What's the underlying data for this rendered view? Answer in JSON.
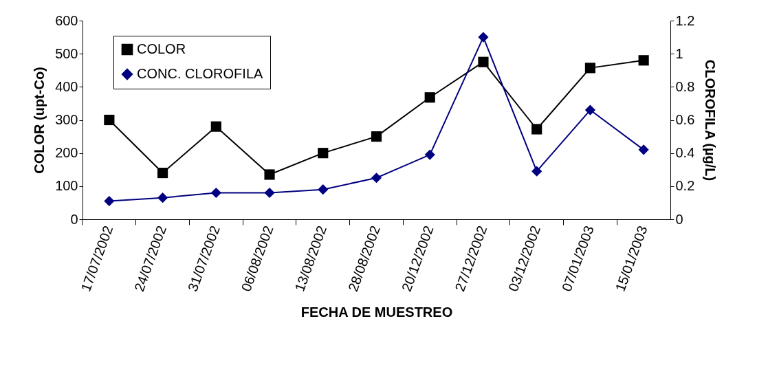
{
  "chart_data": {
    "type": "line",
    "categories": [
      "17/07/2002",
      "24/07/2002",
      "31/07/2002",
      "06/08/2002",
      "13/08/2002",
      "28/08/2002",
      "20/12/2002",
      "27/12/2002",
      "03/12/2002",
      "07/01/2003",
      "15/01/2003"
    ],
    "series": [
      {
        "name": "COLOR",
        "color": "#000000",
        "marker": "square",
        "values": [
          300,
          140,
          280,
          135,
          200,
          250,
          368,
          475,
          272,
          457,
          480
        ]
      },
      {
        "name": "CONC. CLOROFILA",
        "color": "#000080",
        "marker": "diamond",
        "axis": "y2",
        "values": [
          0.11,
          0.13,
          0.16,
          0.16,
          0.18,
          0.25,
          0.39,
          1.1,
          0.29,
          0.66,
          0.42
        ]
      }
    ],
    "xlabel": "FECHA DE MUESTREO",
    "ylabel": "COLOR   (upt-Co)",
    "y2label": "CLOROFILA (µg/L)",
    "ylim": [
      0,
      600
    ],
    "yticks": [
      0,
      100,
      200,
      300,
      400,
      500,
      600
    ],
    "y2lim": [
      0,
      1.2
    ],
    "y2ticks": [
      0,
      0.2,
      0.4,
      0.6,
      0.8,
      1,
      1.2
    ],
    "legend": "top left",
    "grid": false,
    "line_style": "solid"
  }
}
